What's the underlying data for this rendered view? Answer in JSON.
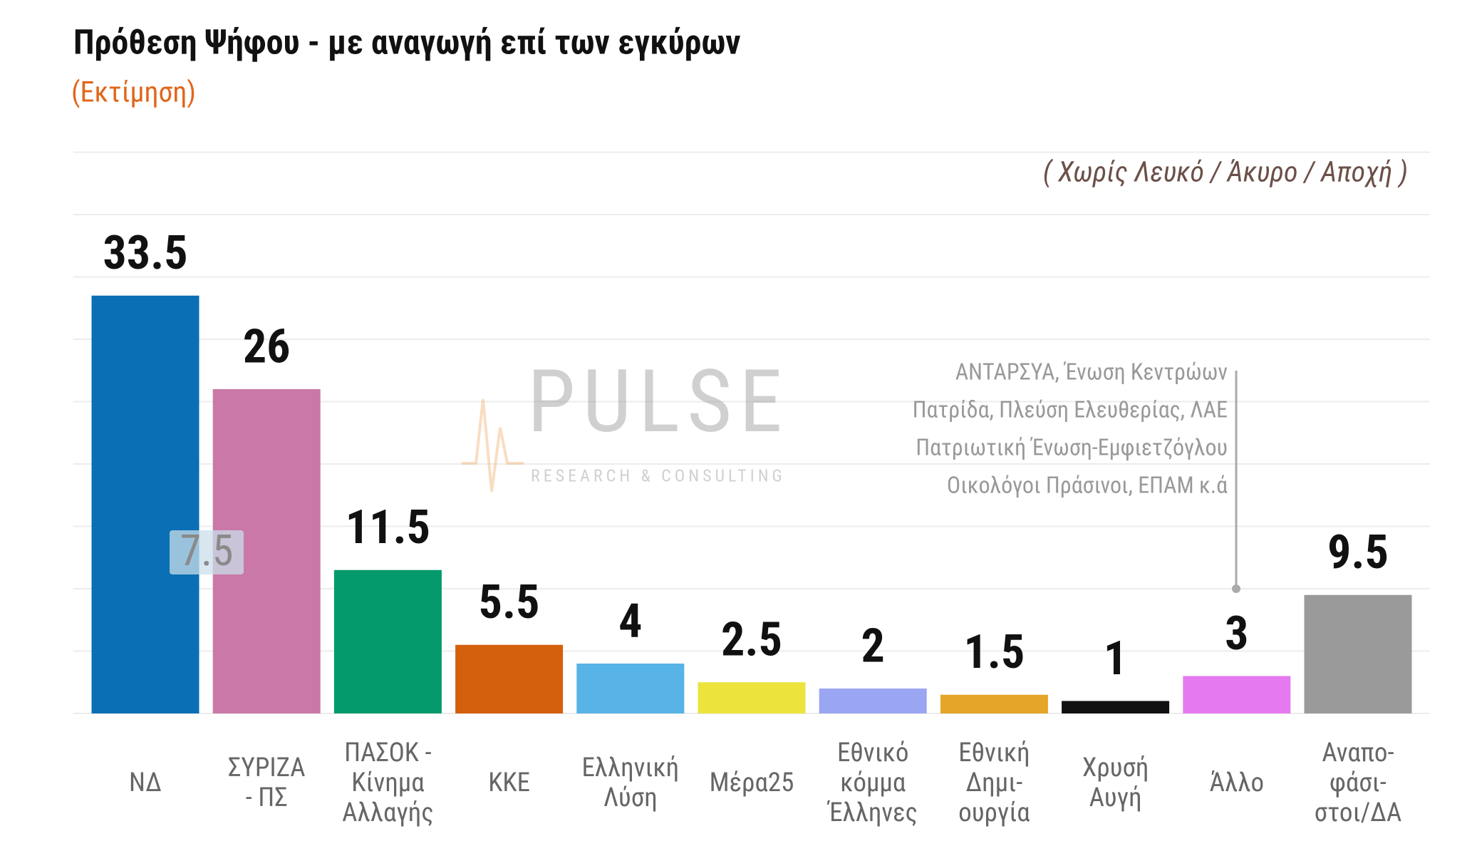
{
  "chart_data": {
    "type": "bar",
    "title": "Πρόθεση Ψήφου - με αναγωγή επί των εγκύρων",
    "subtitle": "(Εκτίμηση)",
    "note": "( Χωρίς Λευκό / Άκυρο / Αποχή )",
    "categories": [
      "ΝΔ",
      "ΣΥΡΙΖΑ\n- ΠΣ",
      "ΠΑΣΟΚ -\nΚίνημα\nΑλλαγής",
      "ΚΚΕ",
      "Ελληνική\nΛύση",
      "Μέρα25",
      "Εθνικό\nκόμμα\nΈλληνες",
      "Εθνική\nΔημι-\nουργία",
      "Χρυσή\nΑυγή",
      "Άλλο",
      "Αναπο-\nφάσι-\nστοι/ΔΑ"
    ],
    "values": [
      33.5,
      26,
      11.5,
      5.5,
      4,
      2.5,
      2,
      1.5,
      1,
      3,
      9.5
    ],
    "colors": [
      "#0a6fb4",
      "#c978a8",
      "#049a6c",
      "#d4600d",
      "#58b3e6",
      "#ece33c",
      "#9aa6f2",
      "#e5a528",
      "#111111",
      "#e57af0",
      "#9a9a9a"
    ],
    "ylim": [
      0,
      45
    ],
    "yticks": [
      0,
      5,
      10,
      15,
      20,
      25,
      30,
      35,
      40,
      45
    ],
    "grid": true,
    "difference_label": "7.5",
    "other_note": [
      "ΑΝΤΑΡΣΥΑ, Ένωση Κεντρώων",
      "Πατρίδα, Πλεύση Ελευθερίας, ΛΑΕ",
      "Πατριωτική Ένωση-Εμφιετζόγλου",
      "Οικολόγοι Πράσινοι, ΕΠΑΜ  κ.ά"
    ],
    "watermark": {
      "name": "PULSE",
      "tagline": "RESEARCH & CONSULTING"
    }
  }
}
